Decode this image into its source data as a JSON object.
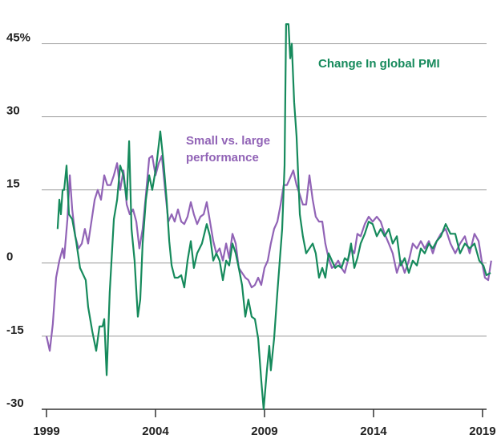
{
  "chart_data": {
    "type": "line",
    "xlim": [
      1999,
      2019.48
    ],
    "xticks": [
      1999,
      2004,
      2009,
      2014,
      2019
    ],
    "ylim": [
      -30,
      51
    ],
    "yticks": [
      -30,
      -15,
      0,
      15,
      30,
      {
        "value": 45,
        "label": "45%"
      }
    ],
    "grid": true,
    "series": [
      {
        "name": "Change In global PMI",
        "color": "#168a5c",
        "x": [
          1999.51,
          1999.59,
          1999.66,
          1999.74,
          1999.81,
          1999.92,
          2000.03,
          2000.18,
          2000.36,
          2000.54,
          2000.8,
          2000.91,
          2001.1,
          2001.28,
          2001.43,
          2001.57,
          2001.65,
          2001.76,
          2001.9,
          2002.09,
          2002.24,
          2002.38,
          2002.53,
          2002.68,
          2002.79,
          2002.9,
          2003.04,
          2003.19,
          2003.3,
          2003.41,
          2003.56,
          2003.71,
          2003.85,
          2004.04,
          2004.22,
          2004.37,
          2004.51,
          2004.63,
          2004.74,
          2004.88,
          2005.03,
          2005.18,
          2005.32,
          2005.47,
          2005.62,
          2005.76,
          2005.91,
          2006.13,
          2006.35,
          2006.5,
          2006.65,
          2006.79,
          2006.94,
          2007.09,
          2007.24,
          2007.38,
          2007.53,
          2007.68,
          2007.82,
          2007.97,
          2008.12,
          2008.26,
          2008.41,
          2008.56,
          2008.71,
          2008.85,
          2008.96,
          2009.11,
          2009.22,
          2009.29,
          2009.44,
          2009.59,
          2009.7,
          2009.81,
          2009.92,
          2009.99,
          2010.1,
          2010.18,
          2010.25,
          2010.36,
          2010.47,
          2010.62,
          2010.76,
          2010.91,
          2011.06,
          2011.21,
          2011.35,
          2011.5,
          2011.65,
          2011.79,
          2011.94,
          2012.09,
          2012.24,
          2012.38,
          2012.53,
          2012.68,
          2012.82,
          2012.97,
          2013.12,
          2013.26,
          2013.41,
          2013.6,
          2013.78,
          2013.96,
          2014.15,
          2014.33,
          2014.51,
          2014.7,
          2014.88,
          2015.07,
          2015.25,
          2015.43,
          2015.62,
          2015.8,
          2015.99,
          2016.17,
          2016.35,
          2016.54,
          2016.72,
          2016.9,
          2017.09,
          2017.31,
          2017.53,
          2017.75,
          2017.97,
          2018.19,
          2018.41,
          2018.63,
          2018.85,
          2019.04,
          2019.18,
          2019.37
        ],
        "values": [
          7,
          13,
          10,
          15,
          15,
          20,
          10,
          9,
          4.5,
          -1,
          -3.5,
          -9,
          -14,
          -18,
          -13,
          -13,
          -11.5,
          -23,
          -6,
          9,
          13,
          20,
          18,
          13,
          25,
          7,
          0.5,
          -11,
          -7.5,
          4,
          13,
          18,
          15,
          20,
          27,
          20.5,
          13,
          4.5,
          -0.5,
          -3,
          -3,
          -2.5,
          -5,
          0.5,
          4.5,
          -1,
          2,
          4,
          8,
          5.5,
          0.5,
          2,
          0.5,
          -3.5,
          0.5,
          -0.5,
          4,
          2,
          -1,
          -4.5,
          -11,
          -7.5,
          -11,
          -11.5,
          -15.5,
          -24,
          -30,
          -22,
          -17,
          -22,
          -15.5,
          -6,
          0.5,
          7,
          20,
          49,
          49,
          42,
          45,
          33,
          26,
          10,
          5.5,
          2,
          3,
          4,
          2,
          -3,
          -1,
          -3,
          2,
          0.5,
          -1,
          -0.5,
          -1,
          1,
          0.5,
          4,
          -1,
          1,
          4,
          6,
          8.5,
          8,
          5.5,
          7,
          5.5,
          7,
          4,
          5.5,
          -0.5,
          1,
          -2,
          0.5,
          -0.5,
          3,
          2,
          4,
          3,
          4.5,
          5.5,
          8,
          6,
          6,
          2,
          4,
          3,
          4,
          0.5,
          -0.5,
          -2.5,
          -2
        ]
      },
      {
        "name": "Small vs. large performance",
        "color": "#9163b6",
        "x": [
          1999.0,
          1999.15,
          1999.29,
          1999.44,
          1999.59,
          1999.74,
          1999.81,
          1999.96,
          2000.07,
          2000.18,
          2000.32,
          2000.47,
          2000.62,
          2000.76,
          2000.91,
          2001.06,
          2001.21,
          2001.35,
          2001.5,
          2001.65,
          2001.79,
          2001.94,
          2002.09,
          2002.24,
          2002.38,
          2002.53,
          2002.68,
          2002.82,
          2002.97,
          2003.12,
          2003.26,
          2003.41,
          2003.56,
          2003.71,
          2003.85,
          2004.0,
          2004.15,
          2004.29,
          2004.44,
          2004.59,
          2004.74,
          2004.88,
          2005.03,
          2005.18,
          2005.32,
          2005.47,
          2005.62,
          2005.76,
          2005.91,
          2006.06,
          2006.21,
          2006.35,
          2006.5,
          2006.65,
          2006.79,
          2006.94,
          2007.09,
          2007.24,
          2007.38,
          2007.53,
          2007.68,
          2007.82,
          2007.97,
          2008.12,
          2008.26,
          2008.41,
          2008.56,
          2008.71,
          2008.85,
          2009.0,
          2009.15,
          2009.29,
          2009.44,
          2009.59,
          2009.74,
          2009.88,
          2010.03,
          2010.18,
          2010.32,
          2010.47,
          2010.62,
          2010.76,
          2010.91,
          2011.06,
          2011.21,
          2011.35,
          2011.5,
          2011.65,
          2011.79,
          2011.94,
          2012.09,
          2012.24,
          2012.38,
          2012.53,
          2012.68,
          2012.82,
          2012.97,
          2013.12,
          2013.26,
          2013.41,
          2013.6,
          2013.78,
          2013.96,
          2014.15,
          2014.33,
          2014.51,
          2014.7,
          2014.88,
          2015.07,
          2015.25,
          2015.43,
          2015.62,
          2015.8,
          2015.99,
          2016.17,
          2016.35,
          2016.54,
          2016.72,
          2016.9,
          2017.09,
          2017.31,
          2017.53,
          2017.75,
          2017.97,
          2018.19,
          2018.41,
          2018.63,
          2018.82,
          2018.96,
          2019.11,
          2019.26,
          2019.4
        ],
        "values": [
          -15,
          -18,
          -12.5,
          -3,
          0.5,
          3,
          1,
          9,
          18,
          11,
          5.5,
          3,
          4,
          7,
          4,
          8.5,
          13,
          15,
          13,
          18,
          16,
          16,
          18,
          20.5,
          15,
          19,
          12,
          10,
          11,
          8.5,
          3,
          7,
          14,
          21.5,
          22,
          18,
          20.5,
          22,
          15,
          8.5,
          10,
          8.5,
          11,
          8.5,
          8,
          9.5,
          12.5,
          10,
          8,
          9.5,
          10,
          12.5,
          8.5,
          4.5,
          2,
          3,
          0.5,
          4,
          1,
          6,
          4,
          -1,
          -2,
          -3,
          -3.5,
          -5,
          -4.5,
          -3,
          -4.5,
          -1,
          0.5,
          4,
          7,
          8.5,
          12,
          16,
          16,
          17.5,
          19,
          16,
          14,
          12,
          12,
          18,
          13,
          9.5,
          8.5,
          8.5,
          4,
          1,
          -1,
          -0.5,
          0.5,
          -1,
          -2,
          0.5,
          3,
          2,
          6,
          5.5,
          8,
          9.5,
          8.5,
          9.5,
          8.5,
          6,
          4,
          2,
          -2,
          0.5,
          -2,
          0.5,
          4,
          3,
          4.5,
          3,
          4.5,
          2,
          4.5,
          6,
          7,
          4,
          2,
          4,
          5.5,
          2,
          6,
          4.5,
          0.5,
          -3,
          -3.5,
          0.5
        ]
      }
    ]
  }
}
